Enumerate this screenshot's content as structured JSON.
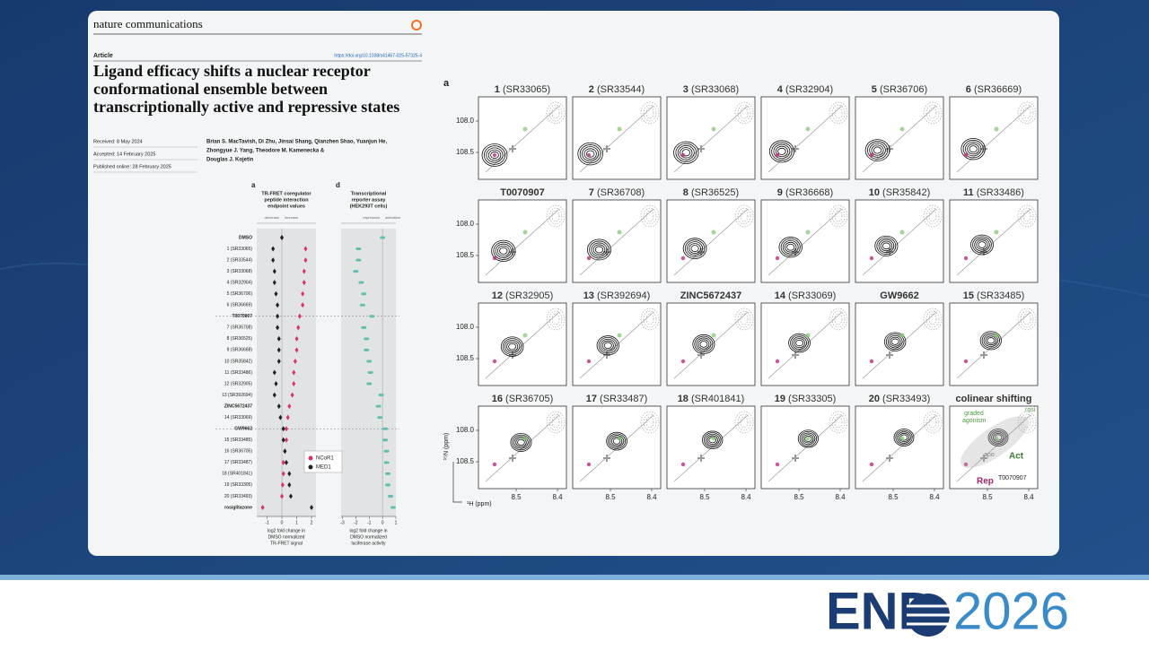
{
  "paper": {
    "journal": "nature communications",
    "kind": "Article",
    "doi": "https://doi.org/10.1038/s41467-025-57325-4",
    "title_lines": [
      "Ligand efficacy shifts a nuclear receptor",
      "conformational ensemble between",
      "transcriptionally active and repressive states"
    ],
    "dates": [
      "Received: 8 May 2024",
      "Accepted: 14 February 2025",
      "Published online: 28 February 2025"
    ],
    "authors": [
      "Brian S. MacTavish, Di Zhu, Jinsai Shang, Qianzhen Shao, Yuanjun He,",
      "Zhongyue J. Yang, Theodore M. Kamenecka &",
      "Douglas J. Kojetin"
    ]
  },
  "figure_left": {
    "rows": [
      "DMSO",
      "1 (SR33065)",
      "2 (SR33544)",
      "3 (SR33068)",
      "4 (SR32904)",
      "5 (SR36706)",
      "6 (SR36669)",
      "T0070907",
      "7 (SR36708)",
      "8 (SR36525)",
      "9 (SR36668)",
      "10 (SR35842)",
      "11 (SR33486)",
      "12 (SR32905)",
      "13 (SR392694)",
      "ZINC5672437",
      "14 (SR33069)",
      "GW9662",
      "15 (SR33485)",
      "16 (SR36705)",
      "17 (SR33487)",
      "18 (SR401841)",
      "19 (SR33305)",
      "20 (SR33493)",
      "rosiglitazone"
    ],
    "panel_a": {
      "letter": "a",
      "title_lines": [
        "TR-FRET coregulator",
        "peptide interaction",
        "endpoint values"
      ],
      "left_hint": "decrease",
      "right_hint": "increase",
      "xlim": [
        -1.7,
        2.3
      ],
      "xticks": [
        -1,
        0,
        1,
        2
      ],
      "xlabel_lines": [
        "log2 fold change in",
        "DMSO normalized",
        "TR-FRET signal"
      ],
      "series": [
        {
          "name": "NCoR1",
          "color": "#d8336e",
          "values": [
            0,
            1.6,
            1.6,
            1.5,
            1.5,
            1.4,
            1.4,
            1.2,
            1.1,
            1.0,
            1.0,
            0.9,
            0.8,
            0.8,
            0.7,
            0.5,
            0.4,
            0.3,
            0.3,
            0.2,
            0.1,
            0.1,
            0.05,
            0,
            -1.3
          ]
        },
        {
          "name": "MED1",
          "color": "#222222",
          "values": [
            0,
            -0.6,
            -0.6,
            -0.5,
            -0.5,
            -0.4,
            -0.3,
            -0.3,
            -0.3,
            -0.2,
            -0.2,
            -0.2,
            -0.5,
            -0.4,
            -0.5,
            -0.2,
            -0.1,
            0.1,
            0.1,
            0.2,
            0.3,
            0.5,
            0.5,
            0.6,
            2.0
          ]
        }
      ]
    },
    "panel_d": {
      "letter": "d",
      "title_lines": [
        "Transcriptional",
        "reporter assay",
        "(HEK293T cells)"
      ],
      "left_hint": "repression",
      "right_hint": "activation",
      "xlim": [
        -3.1,
        1.0
      ],
      "xticks": [
        -3,
        -2,
        -1,
        0,
        1
      ],
      "xlabel_lines": [
        "log2 fold change in",
        "DMSO normalized",
        "luciferase activity"
      ],
      "color": "#66bfae",
      "values": [
        0,
        -1.8,
        -1.8,
        -2.0,
        -1.6,
        -1.4,
        -1.5,
        -0.8,
        -1.4,
        -1.2,
        -1.2,
        -1.0,
        -0.9,
        -1.0,
        -0.1,
        -0.3,
        -0.2,
        0.2,
        0.2,
        0.3,
        0.3,
        0.4,
        0.4,
        0.6,
        0.8
      ]
    }
  },
  "figure_right": {
    "letter": "a",
    "panels": [
      {
        "label": "1",
        "code": "(SR33065)"
      },
      {
        "label": "2",
        "code": "(SR33544)"
      },
      {
        "label": "3",
        "code": "(SR33068)"
      },
      {
        "label": "4",
        "code": "(SR32904)"
      },
      {
        "label": "5",
        "code": "(SR36706)"
      },
      {
        "label": "6",
        "code": "(SR36669)"
      },
      {
        "label": "T0070907"
      },
      {
        "label": "7",
        "code": "(SR36708)"
      },
      {
        "label": "8",
        "code": "(SR36525)"
      },
      {
        "label": "9",
        "code": "(SR36668)"
      },
      {
        "label": "10",
        "code": "(SR35842)"
      },
      {
        "label": "11",
        "code": "(SR33486)"
      },
      {
        "label": "12",
        "code": "(SR32905)"
      },
      {
        "label": "13",
        "code": "(SR392694)"
      },
      {
        "label": "ZINC5672437"
      },
      {
        "label": "14",
        "code": "(SR33069)"
      },
      {
        "label": "GW9662"
      },
      {
        "label": "15",
        "code": "(SR33485)"
      },
      {
        "label": "16",
        "code": "(SR36705)"
      },
      {
        "label": "17",
        "code": "(SR33487)"
      },
      {
        "label": "18",
        "code": "(SR401841)"
      },
      {
        "label": "19",
        "code": "(SR33305)"
      },
      {
        "label": "20",
        "code": "(SR33493)"
      },
      {
        "label": "colinear shifting"
      }
    ],
    "yticks": [
      {
        "value": 108,
        "label": "108.0"
      },
      108.5
    ],
    "xticks": [
      8.5,
      8.4
    ],
    "ylabel": "¹⁵N (ppm)",
    "xlabel": "¹H (ppm)",
    "annotations": {
      "graded": "graded",
      "agonism": "agonism",
      "rosi": "rosi",
      "apo": "apo",
      "act": "Act",
      "rep": "Rep",
      "t0070907": "T0070907"
    }
  },
  "logo": {
    "left": "END",
    "right": "2026"
  }
}
